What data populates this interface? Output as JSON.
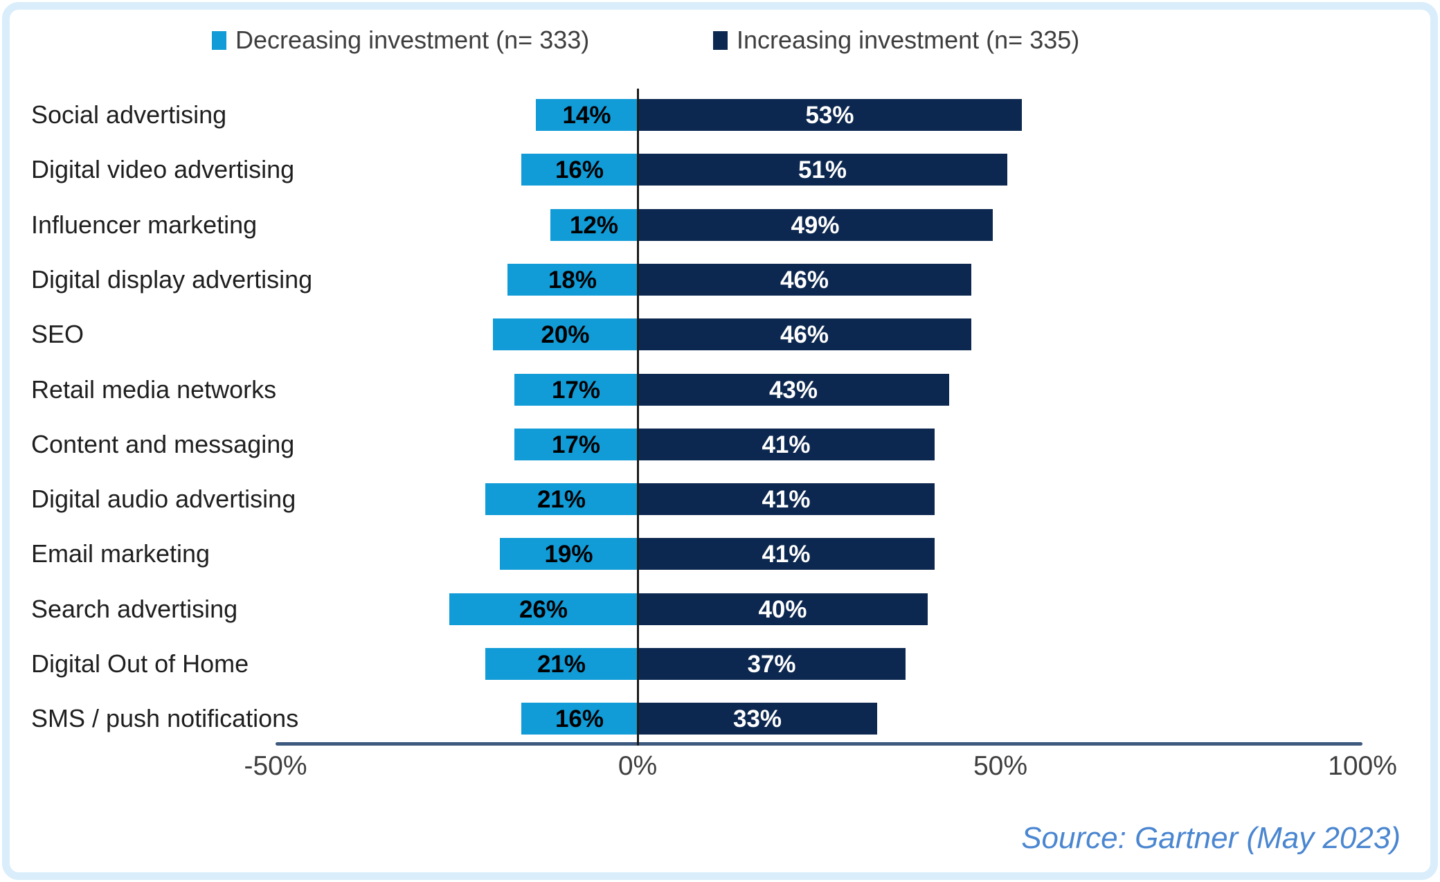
{
  "figure": {
    "background_color": "#FFFFFF",
    "border_color": "#D9EDFB"
  },
  "legend": {
    "items": [
      {
        "label": "Decreasing investment (n= 333)",
        "color": "#119BD7"
      },
      {
        "label": "Increasing investment (n= 335)",
        "color": "#0D2850"
      }
    ]
  },
  "source_note": "Source: Gartner (May 2023)",
  "chart_data": {
    "type": "bar",
    "subtype": "diverging-horizontal",
    "title": "",
    "categories": [
      "Social advertising",
      "Digital video advertising",
      "Influencer marketing",
      "Digital display advertising",
      "SEO",
      "Retail media networks",
      "Content and messaging",
      "Digital audio advertising",
      "Email marketing",
      "Search advertising",
      "Digital Out of Home",
      "SMS / push notifications"
    ],
    "series": [
      {
        "name": "Decreasing investment (n= 333)",
        "color": "#119BD7",
        "direction": "negative",
        "values": [
          14,
          16,
          12,
          18,
          20,
          17,
          17,
          21,
          19,
          26,
          21,
          16
        ],
        "labels": [
          "14%",
          "16%",
          "12%",
          "18%",
          "20%",
          "17%",
          "17%",
          "21%",
          "19%",
          "26%",
          "21%",
          "16%"
        ]
      },
      {
        "name": "Increasing investment (n= 335)",
        "color": "#0D2850",
        "direction": "positive",
        "values": [
          53,
          51,
          49,
          46,
          46,
          43,
          41,
          41,
          41,
          40,
          37,
          33
        ],
        "labels": [
          "53%",
          "51%",
          "49%",
          "46%",
          "46%",
          "43%",
          "41%",
          "41%",
          "41%",
          "40%",
          "37%",
          "33%"
        ]
      }
    ],
    "x_axis": {
      "min": -50,
      "max": 100,
      "grid": false,
      "ticks": [
        {
          "value": -50,
          "label": "-50%"
        },
        {
          "value": 0,
          "label": "0%"
        },
        {
          "value": 50,
          "label": "50%"
        },
        {
          "value": 100,
          "label": "100%"
        }
      ]
    },
    "legend_position": "top",
    "value_labels": "inside-bars",
    "source": "Source: Gartner (May 2023)"
  }
}
